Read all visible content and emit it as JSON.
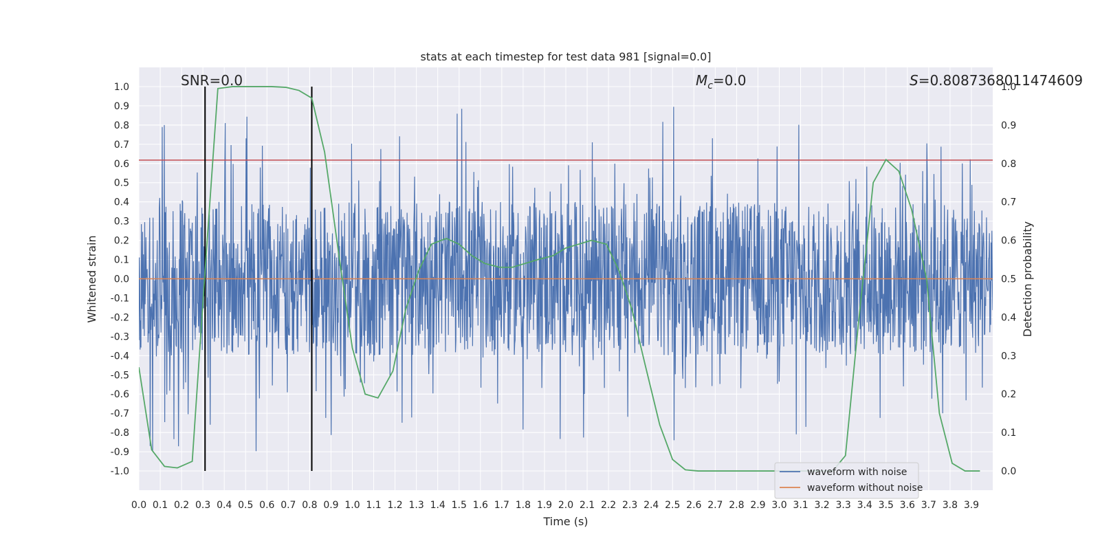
{
  "chart_data": {
    "type": "line",
    "title": "stats at each timestep for test data 981 [signal=0.0]",
    "xlabel": "Time (s)",
    "ylabel": "Whitened strain",
    "y2label": "Detection probability",
    "xlim": [
      0.0,
      4.0
    ],
    "ylim": [
      -1.1,
      1.1
    ],
    "y2lim": [
      -0.05,
      1.05
    ],
    "x_ticks": [
      0.0,
      0.1,
      0.2,
      0.3,
      0.4,
      0.5,
      0.6,
      0.7,
      0.8,
      0.9,
      1.0,
      1.1,
      1.2,
      1.3,
      1.4,
      1.5,
      1.6,
      1.7,
      1.8,
      1.9,
      2.0,
      2.1,
      2.2,
      2.3,
      2.4,
      2.5,
      2.6,
      2.7,
      2.8,
      2.9,
      3.0,
      3.1,
      3.2,
      3.3,
      3.4,
      3.5,
      3.6,
      3.7,
      3.8,
      3.9
    ],
    "y_ticks": [
      -1.0,
      -0.9,
      -0.8,
      -0.7,
      -0.6,
      -0.5,
      -0.4,
      -0.3,
      -0.2,
      -0.1,
      0.0,
      0.1,
      0.2,
      0.3,
      0.4,
      0.5,
      0.6,
      0.7,
      0.8,
      0.9,
      1.0
    ],
    "y2_ticks": [
      0.0,
      0.1,
      0.2,
      0.3,
      0.4,
      0.5,
      0.6,
      0.7,
      0.8,
      0.9,
      1.0
    ],
    "grid": true,
    "legend": {
      "placement": "bottom-right",
      "entries": [
        {
          "label": "waveform with noise",
          "color": "#4c72b0"
        },
        {
          "label": "waveform without noise",
          "color": "#dd8452"
        }
      ]
    },
    "annotations": {
      "snr": "SNR=0.0",
      "mc_symbol": "M",
      "mc_sub": "c",
      "mc_value": "=0.0",
      "s_symbol": "S",
      "s_value": "=0.8087368011474609"
    },
    "threshold_line": {
      "y2": 0.8087368011474609,
      "color": "#c44e52"
    },
    "event_markers": {
      "x": [
        0.31,
        0.81
      ],
      "y2_range": [
        0.0,
        1.0
      ],
      "color": "#000000"
    },
    "noise_waveform": {
      "color": "#4c72b0",
      "x_range": [
        0.0,
        4.0
      ],
      "amplitude_typical": 0.4,
      "amplitude_peak": 1.0,
      "samples": 2048
    },
    "clean_waveform": {
      "color": "#dd8452",
      "value": 0.0
    },
    "probability_series": {
      "color": "#55a868",
      "x": [
        0.0,
        0.06,
        0.12,
        0.18,
        0.25,
        0.31,
        0.37,
        0.44,
        0.5,
        0.56,
        0.62,
        0.69,
        0.75,
        0.81,
        0.87,
        0.94,
        1.0,
        1.06,
        1.12,
        1.19,
        1.25,
        1.31,
        1.37,
        1.44,
        1.5,
        1.56,
        1.62,
        1.69,
        1.75,
        1.81,
        1.87,
        1.94,
        2.0,
        2.06,
        2.12,
        2.19,
        2.25,
        2.31,
        2.37,
        2.44,
        2.5,
        2.56,
        2.62,
        2.69,
        2.75,
        2.81,
        2.87,
        2.94,
        3.0,
        3.06,
        3.12,
        3.19,
        3.25,
        3.31,
        3.37,
        3.44,
        3.5,
        3.56,
        3.62,
        3.69,
        3.75,
        3.81,
        3.87,
        3.94
      ],
      "y": [
        0.27,
        0.055,
        0.012,
        0.008,
        0.025,
        0.52,
        0.995,
        1.0,
        1.0,
        1.0,
        1.0,
        0.998,
        0.99,
        0.97,
        0.83,
        0.55,
        0.32,
        0.2,
        0.19,
        0.26,
        0.42,
        0.52,
        0.59,
        0.605,
        0.59,
        0.56,
        0.54,
        0.53,
        0.53,
        0.54,
        0.55,
        0.56,
        0.58,
        0.59,
        0.6,
        0.59,
        0.52,
        0.42,
        0.28,
        0.12,
        0.03,
        0.003,
        0.0,
        0.0,
        0.0,
        0.0,
        0.0,
        0.0,
        0.0,
        0.0,
        0.0,
        0.0,
        0.0,
        0.04,
        0.38,
        0.75,
        0.81,
        0.78,
        0.68,
        0.5,
        0.15,
        0.02,
        0.0,
        0.0
      ]
    }
  }
}
